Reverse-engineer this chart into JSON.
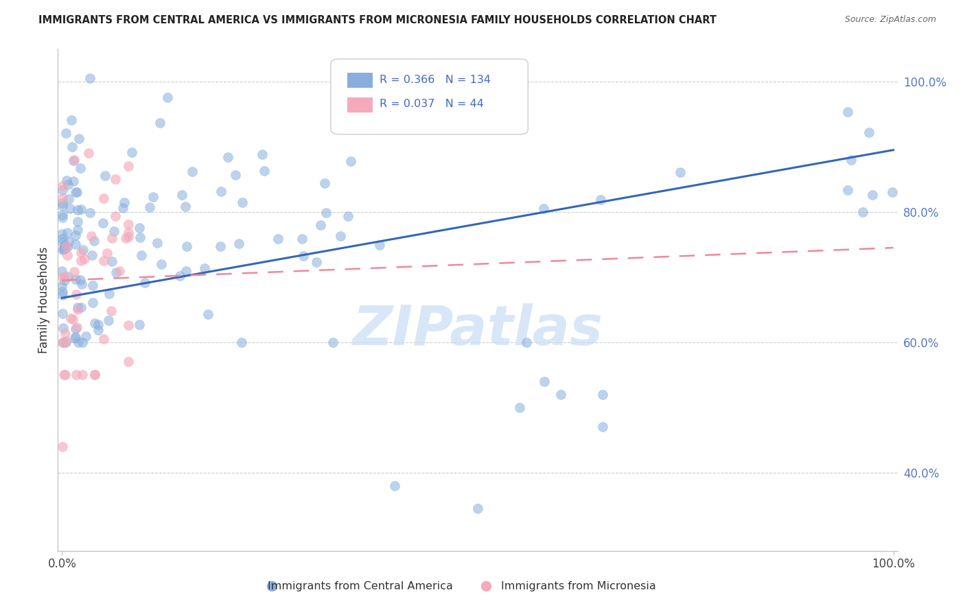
{
  "title": "IMMIGRANTS FROM CENTRAL AMERICA VS IMMIGRANTS FROM MICRONESIA FAMILY HOUSEHOLDS CORRELATION CHART",
  "source": "Source: ZipAtlas.com",
  "ylabel": "Family Households",
  "legend_blue_R": "0.366",
  "legend_blue_N": "134",
  "legend_pink_R": "0.037",
  "legend_pink_N": "44",
  "legend_blue_label": "Immigrants from Central America",
  "legend_pink_label": "Immigrants from Micronesia",
  "blue_color": "#88AEDD",
  "pink_color": "#F4AABB",
  "blue_edge_color": "#88AEDD",
  "pink_edge_color": "#F4AABB",
  "blue_line_color": "#3366BB",
  "pink_line_color": "#EE8899",
  "watermark": "ZIPatlas",
  "blue_line_y_start": 0.668,
  "blue_line_y_end": 0.895,
  "pink_line_y_start": 0.695,
  "pink_line_y_end": 0.745,
  "ylim": [
    0.28,
    1.05
  ],
  "xlim": [
    -0.005,
    1.005
  ],
  "yticks": [
    0.4,
    0.6,
    0.8,
    1.0
  ],
  "ytick_labels": [
    "40.0%",
    "60.0%",
    "80.0%",
    "100.0%"
  ],
  "xtick_labels": [
    "0.0%",
    "100.0%"
  ],
  "xtick_pos": [
    0.0,
    1.0
  ]
}
